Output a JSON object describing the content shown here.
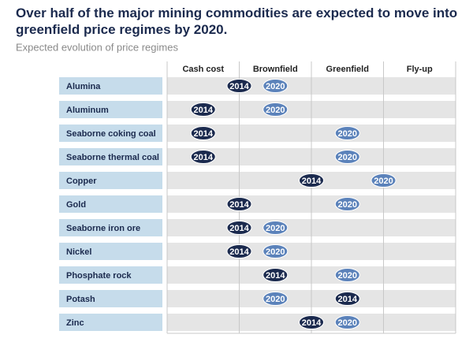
{
  "chart_data": {
    "type": "dot",
    "title": "Over half of the major mining commodities are expected to move into greenfield price regimes by 2020.",
    "subtitle": "Expected evolution of price regimes",
    "columns": [
      "Cash cost",
      "Brownfield",
      "Greenfield",
      "Fly-up"
    ],
    "categories": [
      "Alumina",
      "Aluminum",
      "Seaborne coking coal",
      "Seaborne thermal coal",
      "Copper",
      "Gold",
      "Seaborne iron ore",
      "Nickel",
      "Phosphate rock",
      "Potash",
      "Zinc"
    ],
    "xlim": [
      0,
      4
    ],
    "series": [
      {
        "name": "2014",
        "color": "#1b2a4e",
        "values": [
          1.0,
          0.5,
          0.5,
          0.5,
          2.0,
          1.0,
          1.0,
          1.0,
          1.5,
          2.5,
          2.0
        ]
      },
      {
        "name": "2020",
        "color": "#5b82ba",
        "values": [
          1.5,
          1.5,
          2.5,
          2.5,
          3.0,
          2.5,
          1.5,
          1.5,
          2.5,
          1.5,
          2.5
        ]
      }
    ]
  }
}
